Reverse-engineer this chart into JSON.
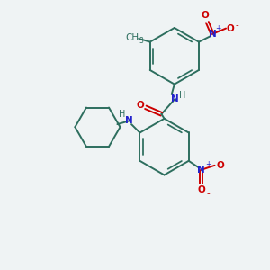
{
  "bg_color": "#eff3f4",
  "bond_color": "#2d6e5e",
  "N_color": "#2222cc",
  "O_color": "#cc0000",
  "bond_width": 1.4,
  "figsize": [
    3.0,
    3.0
  ],
  "dpi": 100,
  "xlim": [
    -1.8,
    2.8
  ],
  "ylim": [
    -2.2,
    2.5
  ]
}
